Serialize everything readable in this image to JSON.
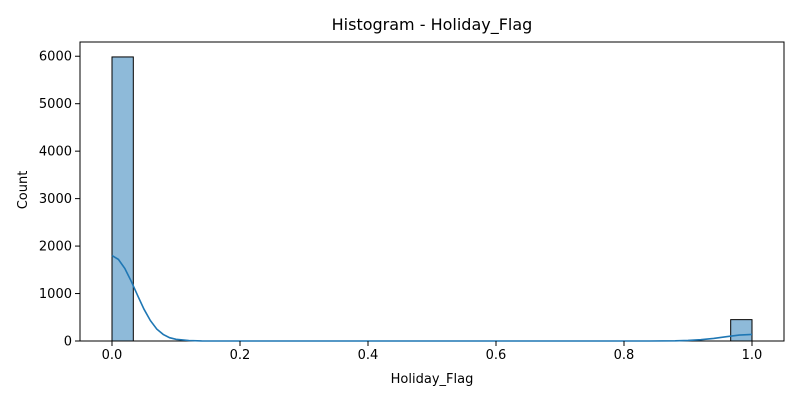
{
  "chart_data": {
    "type": "bar",
    "title": "Histogram - Holiday_Flag",
    "xlabel": "Holiday_Flag",
    "ylabel": "Count",
    "xlim": [
      -0.05,
      1.05
    ],
    "ylim": [
      0,
      6300
    ],
    "xticks": [
      0.0,
      0.2,
      0.4,
      0.6,
      0.8,
      1.0
    ],
    "xtick_labels": [
      "0.0",
      "0.2",
      "0.4",
      "0.6",
      "0.8",
      "1.0"
    ],
    "yticks": [
      0,
      1000,
      2000,
      3000,
      4000,
      5000,
      6000
    ],
    "ytick_labels": [
      "0",
      "1000",
      "2000",
      "3000",
      "4000",
      "5000",
      "6000"
    ],
    "grid": false,
    "bars": [
      {
        "x0": 0.0,
        "x1": 0.0333,
        "value": 5985
      },
      {
        "x0": 0.9667,
        "x1": 1.0,
        "value": 450
      }
    ],
    "kde": {
      "x": [
        0.0,
        0.01,
        0.02,
        0.03,
        0.04,
        0.05,
        0.06,
        0.07,
        0.08,
        0.09,
        0.1,
        0.12,
        0.14,
        0.16,
        0.2,
        0.4,
        0.6,
        0.8,
        0.84,
        0.88,
        0.9,
        0.92,
        0.94,
        0.96,
        0.98,
        1.0
      ],
      "y": [
        1800,
        1720,
        1530,
        1260,
        960,
        670,
        430,
        250,
        140,
        70,
        35,
        10,
        3,
        1,
        0,
        0,
        0,
        0,
        1,
        5,
        12,
        28,
        55,
        90,
        125,
        140
      ]
    },
    "colors": {
      "bar_fill": "#8ebad9",
      "bar_edge": "#000000",
      "kde_line": "#1f77b4"
    }
  }
}
